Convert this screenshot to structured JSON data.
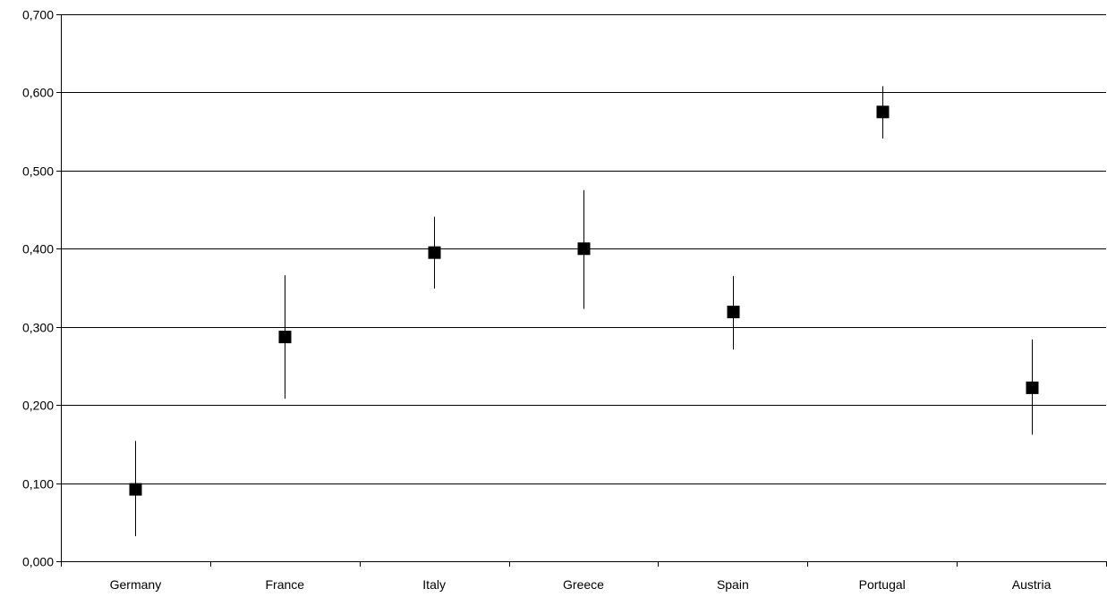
{
  "chart_data": {
    "type": "scatter",
    "categories": [
      "Germany",
      "France",
      "Italy",
      "Greece",
      "Spain",
      "Portugal",
      "Austria"
    ],
    "series": [
      {
        "values": [
          0.092,
          0.287,
          0.395,
          0.4,
          0.319,
          0.575,
          0.222
        ],
        "error_low": [
          0.032,
          0.208,
          0.349,
          0.323,
          0.271,
          0.541,
          0.162
        ],
        "error_high": [
          0.154,
          0.366,
          0.441,
          0.475,
          0.365,
          0.608,
          0.284
        ]
      }
    ],
    "ylim": [
      0,
      0.7
    ],
    "yticks": [
      0,
      0.1,
      0.2,
      0.3,
      0.4,
      0.5,
      0.6,
      0.7
    ],
    "ytick_labels": [
      "0,000",
      "0,100",
      "0,200",
      "0,300",
      "0,400",
      "0,500",
      "0,600",
      "0,700"
    ],
    "grid": true,
    "marker": "square",
    "colors": {
      "marker": "#000000",
      "grid": "#000000",
      "background": "#ffffff"
    }
  }
}
